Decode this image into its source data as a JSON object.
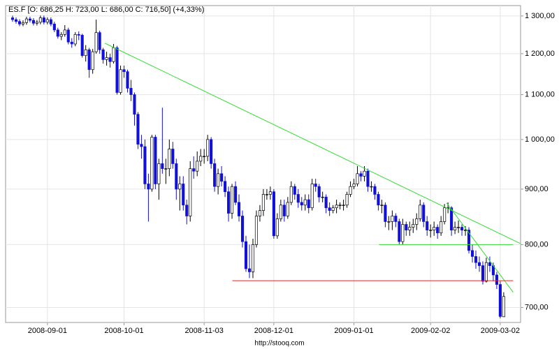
{
  "chart_data": {
    "type": "candlestick",
    "title": "ES.F [O: 686,25  H: 723,00  L: 686,00  C: 716,50] (+4,33%)",
    "source": "http://stooq.com",
    "categories": [
      null,
      null,
      null,
      null,
      null,
      null,
      null,
      null,
      null,
      null,
      "2008-09-01",
      null,
      null,
      null,
      null,
      null,
      null,
      null,
      null,
      null,
      null,
      null,
      null,
      null,
      null,
      null,
      null,
      null,
      null,
      null,
      null,
      null,
      "2008-10-01",
      null,
      null,
      null,
      null,
      null,
      null,
      null,
      null,
      null,
      null,
      null,
      null,
      null,
      null,
      null,
      null,
      null,
      null,
      null,
      null,
      null,
      null,
      "2008-11-03",
      null,
      null,
      null,
      null,
      null,
      null,
      null,
      null,
      null,
      null,
      null,
      null,
      null,
      null,
      null,
      null,
      null,
      null,
      null,
      "2008-12-01",
      null,
      null,
      null,
      null,
      null,
      null,
      null,
      null,
      null,
      null,
      null,
      null,
      null,
      null,
      null,
      null,
      null,
      null,
      null,
      null,
      null,
      null,
      "2009-01-01",
      null,
      null,
      null,
      null,
      null,
      null,
      null,
      null,
      null,
      null,
      null,
      null,
      null,
      null,
      null,
      null,
      null,
      null,
      null,
      null,
      null,
      "2009-02-02",
      null,
      null,
      null,
      null,
      null,
      null,
      null,
      null,
      null,
      null,
      null,
      null,
      null,
      null,
      null,
      null,
      null,
      null,
      null,
      "2009-03-02",
      null
    ],
    "open": [
      1295,
      1290,
      1285,
      1278,
      1282,
      1292,
      1288,
      1280,
      1283,
      1295,
      1283,
      1290,
      1278,
      1262,
      1245,
      1250,
      1262,
      1230,
      1225,
      1250,
      1248,
      1195,
      1210,
      1160,
      1205,
      1255,
      1210,
      1185,
      1190,
      1180,
      1215,
      1105,
      1160,
      1155,
      1115,
      1100,
      1055,
      990,
      985,
      910,
      900,
      1005,
      910,
      950,
      940,
      940,
      980,
      950,
      900,
      910,
      870,
      850,
      940,
      935,
      955,
      965,
      965,
      1000,
      950,
      905,
      930,
      915,
      895,
      855,
      905,
      875,
      850,
      805,
      760,
      755,
      800,
      850,
      860,
      890,
      890,
      895,
      815,
      845,
      870,
      850,
      875,
      905,
      890,
      875,
      870,
      880,
      865,
      910,
      905,
      885,
      885,
      865,
      860,
      865,
      870,
      870,
      870,
      890,
      905,
      910,
      930,
      925,
      935,
      905,
      905,
      890,
      870,
      870,
      840,
      840,
      850,
      840,
      805,
      835,
      825,
      830,
      835,
      845,
      870,
      840,
      825,
      825,
      830,
      820,
      840,
      865,
      865,
      825,
      830,
      830,
      825,
      825,
      790,
      780,
      770,
      765,
      740,
      770,
      765,
      750,
      735,
      686.25
    ],
    "high": [
      1301,
      1296,
      1291,
      1288,
      1298,
      1298,
      1294,
      1289,
      1301,
      1301,
      1296,
      1296,
      1284,
      1268,
      1256,
      1275,
      1268,
      1240,
      1256,
      1258,
      1252,
      1222,
      1215,
      1212,
      1290,
      1260,
      1215,
      1205,
      1200,
      1225,
      1220,
      1170,
      1170,
      1160,
      1135,
      1105,
      1060,
      1010,
      1000,
      930,
      1010,
      1010,
      960,
      1070,
      960,
      1000,
      995,
      960,
      925,
      925,
      880,
      955,
      965,
      975,
      980,
      980,
      1010,
      1005,
      960,
      940,
      945,
      925,
      905,
      910,
      915,
      890,
      860,
      815,
      800,
      810,
      860,
      870,
      900,
      900,
      905,
      900,
      855,
      880,
      880,
      885,
      915,
      910,
      900,
      885,
      890,
      890,
      920,
      920,
      910,
      895,
      890,
      875,
      870,
      880,
      875,
      880,
      895,
      915,
      920,
      945,
      935,
      945,
      940,
      915,
      910,
      895,
      880,
      875,
      850,
      860,
      855,
      845,
      845,
      840,
      840,
      845,
      855,
      880,
      875,
      850,
      835,
      840,
      835,
      850,
      872,
      875,
      868,
      840,
      842,
      835,
      832,
      830,
      800,
      790,
      780,
      772,
      778,
      780,
      770,
      755,
      740,
      723
    ],
    "low": [
      1284,
      1279,
      1272,
      1272,
      1276,
      1282,
      1274,
      1274,
      1277,
      1277,
      1277,
      1272,
      1256,
      1239,
      1235,
      1244,
      1224,
      1215,
      1219,
      1235,
      1190,
      1180,
      1140,
      1150,
      1200,
      1200,
      1175,
      1170,
      1165,
      1175,
      1100,
      1100,
      1140,
      1105,
      1085,
      1030,
      980,
      960,
      900,
      840,
      895,
      900,
      880,
      930,
      910,
      925,
      940,
      880,
      860,
      860,
      835,
      840,
      920,
      925,
      945,
      950,
      955,
      940,
      895,
      890,
      905,
      885,
      840,
      845,
      870,
      840,
      795,
      755,
      745,
      745,
      795,
      840,
      850,
      880,
      880,
      810,
      810,
      840,
      840,
      845,
      870,
      880,
      865,
      860,
      860,
      855,
      860,
      895,
      875,
      875,
      855,
      850,
      855,
      855,
      862,
      860,
      865,
      885,
      900,
      905,
      915,
      915,
      895,
      895,
      880,
      860,
      855,
      830,
      825,
      825,
      830,
      800,
      800,
      815,
      815,
      820,
      825,
      840,
      830,
      815,
      812,
      815,
      810,
      815,
      835,
      855,
      815,
      818,
      820,
      815,
      815,
      785,
      770,
      760,
      755,
      735,
      738,
      755,
      740,
      728,
      684,
      686
    ],
    "close": [
      1290,
      1285,
      1278,
      1282,
      1292,
      1288,
      1280,
      1283,
      1295,
      1283,
      1290,
      1278,
      1262,
      1245,
      1250,
      1262,
      1230,
      1225,
      1250,
      1248,
      1195,
      1210,
      1160,
      1205,
      1255,
      1210,
      1185,
      1190,
      1180,
      1215,
      1105,
      1160,
      1155,
      1115,
      1100,
      1055,
      990,
      985,
      910,
      900,
      1005,
      910,
      950,
      940,
      940,
      980,
      950,
      900,
      910,
      870,
      850,
      940,
      935,
      955,
      965,
      965,
      1000,
      950,
      905,
      930,
      915,
      895,
      855,
      905,
      875,
      850,
      805,
      760,
      755,
      800,
      850,
      860,
      890,
      890,
      895,
      815,
      845,
      870,
      850,
      875,
      905,
      890,
      875,
      870,
      880,
      865,
      910,
      905,
      885,
      885,
      865,
      860,
      865,
      870,
      870,
      870,
      890,
      905,
      910,
      930,
      925,
      935,
      905,
      905,
      890,
      870,
      870,
      840,
      840,
      850,
      840,
      805,
      835,
      825,
      830,
      835,
      845,
      870,
      840,
      825,
      825,
      830,
      820,
      840,
      865,
      865,
      825,
      830,
      830,
      825,
      825,
      790,
      780,
      770,
      765,
      740,
      770,
      765,
      750,
      735,
      686.75,
      716.5
    ],
    "up_color": "#ffffff",
    "down_color": "#1010d8",
    "ylim": [
      678,
      1329
    ],
    "log_scale": true,
    "grid": true,
    "yticks": [
      {
        "value": 700,
        "label": "700,00"
      },
      {
        "value": 800,
        "label": "800,00"
      },
      {
        "value": 900,
        "label": "900,00"
      },
      {
        "value": 1000,
        "label": "1 000,00"
      },
      {
        "value": 1100,
        "label": "1 100,00"
      },
      {
        "value": 1200,
        "label": "1 200,00"
      },
      {
        "value": 1300,
        "label": "1 300,00"
      }
    ],
    "lines": [
      {
        "color": "#33dd33",
        "x": [
          26.5,
          145.7
        ],
        "y": [
          1227,
          802
        ]
      },
      {
        "color": "#33dd33",
        "x": [
          124.6,
          143.7
        ],
        "y": [
          874,
          723
        ]
      },
      {
        "color": "#33dd33",
        "x": [
          105.2,
          143.7
        ],
        "y": [
          800,
          800
        ]
      },
      {
        "color": "#ee2222",
        "x": [
          63.1,
          143.7
        ],
        "y": [
          741,
          741
        ]
      }
    ]
  }
}
